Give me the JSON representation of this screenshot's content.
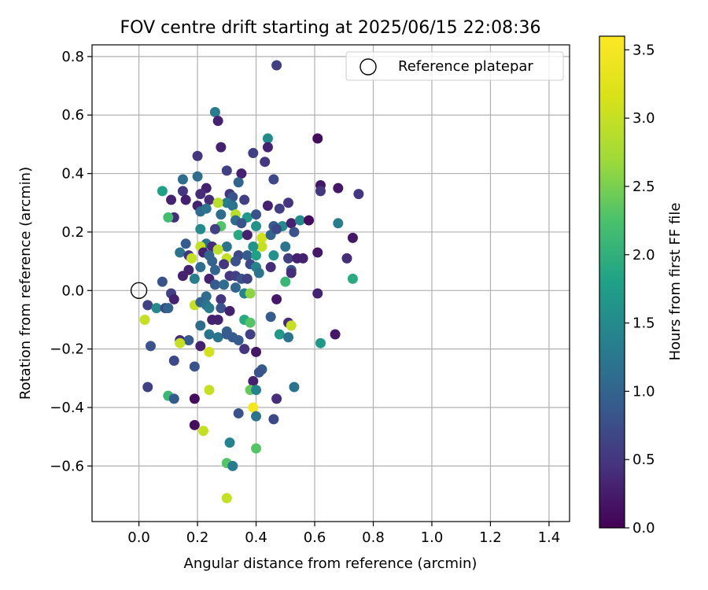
{
  "chart_data": {
    "type": "scatter",
    "title": "FOV centre drift starting at 2025/06/15 22:08:36",
    "xlabel": "Angular distance from reference (arcmin)",
    "ylabel": "Rotation from reference (arcmin)",
    "xlim": [
      -0.16,
      1.47
    ],
    "ylim": [
      -0.79,
      0.84
    ],
    "xticks": [
      0.0,
      0.2,
      0.4,
      0.6,
      0.8,
      1.0,
      1.2,
      1.4
    ],
    "xtick_labels": [
      "0.0",
      "0.2",
      "0.4",
      "0.6",
      "0.8",
      "1.0",
      "1.2",
      "1.4"
    ],
    "yticks": [
      -0.6,
      -0.4,
      -0.2,
      0.0,
      0.2,
      0.4,
      0.6,
      0.8
    ],
    "ytick_labels": [
      "−0.6",
      "−0.4",
      "−0.2",
      "0.0",
      "0.2",
      "0.4",
      "0.6",
      "0.8"
    ],
    "grid": true,
    "legend": {
      "position": "top-right",
      "entries": [
        "Reference platepar"
      ]
    },
    "reference_point": {
      "name": "Reference platepar",
      "x": 0.0,
      "y": 0.0
    },
    "colorbar": {
      "label": "Hours from first FF file",
      "range": [
        0.0,
        3.6
      ],
      "colormap": "viridis",
      "ticks": [
        0.0,
        0.5,
        1.0,
        1.5,
        2.0,
        2.5,
        3.0,
        3.5
      ],
      "tick_labels": [
        "0.0",
        "0.5",
        "1.0",
        "1.5",
        "2.0",
        "2.5",
        "3.0",
        "3.5"
      ]
    },
    "points": [
      {
        "x": 0.47,
        "y": 0.77,
        "h": 0.6
      },
      {
        "x": 0.26,
        "y": 0.61,
        "h": 1.3
      },
      {
        "x": 0.27,
        "y": 0.58,
        "h": 0.3
      },
      {
        "x": 0.44,
        "y": 0.52,
        "h": 1.5
      },
      {
        "x": 0.61,
        "y": 0.52,
        "h": 0.1
      },
      {
        "x": 0.44,
        "y": 0.49,
        "h": 0.3
      },
      {
        "x": 0.28,
        "y": 0.49,
        "h": 0.3
      },
      {
        "x": 0.39,
        "y": 0.47,
        "h": 0.6
      },
      {
        "x": 0.2,
        "y": 0.46,
        "h": 0.5
      },
      {
        "x": 0.43,
        "y": 0.44,
        "h": 0.5
      },
      {
        "x": 0.3,
        "y": 0.41,
        "h": 0.6
      },
      {
        "x": 0.35,
        "y": 0.4,
        "h": 0.3
      },
      {
        "x": 0.2,
        "y": 0.39,
        "h": 1.1
      },
      {
        "x": 0.46,
        "y": 0.38,
        "h": 0.7
      },
      {
        "x": 0.15,
        "y": 0.38,
        "h": 1.1
      },
      {
        "x": 0.34,
        "y": 0.37,
        "h": 1.0
      },
      {
        "x": 0.62,
        "y": 0.36,
        "h": 0.2
      },
      {
        "x": 0.62,
        "y": 0.34,
        "h": 0.5
      },
      {
        "x": 0.68,
        "y": 0.35,
        "h": 0.2
      },
      {
        "x": 0.75,
        "y": 0.33,
        "h": 0.5
      },
      {
        "x": 0.15,
        "y": 0.34,
        "h": 0.5
      },
      {
        "x": 0.08,
        "y": 0.34,
        "h": 1.8
      },
      {
        "x": 0.23,
        "y": 0.35,
        "h": 0.3
      },
      {
        "x": 0.21,
        "y": 0.33,
        "h": 0.4
      },
      {
        "x": 0.31,
        "y": 0.33,
        "h": 0.5
      },
      {
        "x": 0.32,
        "y": 0.32,
        "h": 0.8
      },
      {
        "x": 0.11,
        "y": 0.31,
        "h": 0.3
      },
      {
        "x": 0.16,
        "y": 0.31,
        "h": 0.3
      },
      {
        "x": 0.24,
        "y": 0.31,
        "h": 0.4
      },
      {
        "x": 0.36,
        "y": 0.31,
        "h": 0.6
      },
      {
        "x": 0.3,
        "y": 0.3,
        "h": 1.3
      },
      {
        "x": 0.27,
        "y": 0.3,
        "h": 2.9
      },
      {
        "x": 0.32,
        "y": 0.29,
        "h": 1.2
      },
      {
        "x": 0.2,
        "y": 0.29,
        "h": 0.3
      },
      {
        "x": 0.44,
        "y": 0.29,
        "h": 0.3
      },
      {
        "x": 0.51,
        "y": 0.3,
        "h": 0.5
      },
      {
        "x": 0.48,
        "y": 0.28,
        "h": 0.6
      },
      {
        "x": 0.21,
        "y": 0.27,
        "h": 1.1
      },
      {
        "x": 0.23,
        "y": 0.28,
        "h": 1.2
      },
      {
        "x": 0.28,
        "y": 0.26,
        "h": 1.1
      },
      {
        "x": 0.33,
        "y": 0.26,
        "h": 2.9
      },
      {
        "x": 0.37,
        "y": 0.25,
        "h": 1.7
      },
      {
        "x": 0.4,
        "y": 0.26,
        "h": 0.8
      },
      {
        "x": 0.12,
        "y": 0.25,
        "h": 0.4
      },
      {
        "x": 0.1,
        "y": 0.25,
        "h": 2.2
      },
      {
        "x": 0.33,
        "y": 0.24,
        "h": 1.1
      },
      {
        "x": 0.35,
        "y": 0.23,
        "h": 0.8
      },
      {
        "x": 0.4,
        "y": 0.22,
        "h": 1.6
      },
      {
        "x": 0.46,
        "y": 0.22,
        "h": 0.9
      },
      {
        "x": 0.49,
        "y": 0.22,
        "h": 1.5
      },
      {
        "x": 0.52,
        "y": 0.23,
        "h": 0.3
      },
      {
        "x": 0.55,
        "y": 0.24,
        "h": 1.5
      },
      {
        "x": 0.58,
        "y": 0.24,
        "h": 0.1
      },
      {
        "x": 0.68,
        "y": 0.23,
        "h": 1.3
      },
      {
        "x": 0.28,
        "y": 0.22,
        "h": 2.3
      },
      {
        "x": 0.21,
        "y": 0.21,
        "h": 1.5
      },
      {
        "x": 0.26,
        "y": 0.21,
        "h": 0.6
      },
      {
        "x": 0.34,
        "y": 0.19,
        "h": 1.9
      },
      {
        "x": 0.37,
        "y": 0.19,
        "h": 0.3
      },
      {
        "x": 0.42,
        "y": 0.18,
        "h": 3.1
      },
      {
        "x": 0.45,
        "y": 0.19,
        "h": 1.0
      },
      {
        "x": 0.47,
        "y": 0.21,
        "h": 0.7
      },
      {
        "x": 0.53,
        "y": 0.2,
        "h": 0.8
      },
      {
        "x": 0.73,
        "y": 0.18,
        "h": 0.2
      },
      {
        "x": 0.16,
        "y": 0.16,
        "h": 0.9
      },
      {
        "x": 0.23,
        "y": 0.16,
        "h": 1.2
      },
      {
        "x": 0.21,
        "y": 0.15,
        "h": 3.0
      },
      {
        "x": 0.25,
        "y": 0.15,
        "h": 0.4
      },
      {
        "x": 0.3,
        "y": 0.15,
        "h": 1.2
      },
      {
        "x": 0.42,
        "y": 0.15,
        "h": 3.0
      },
      {
        "x": 0.39,
        "y": 0.15,
        "h": 1.6
      },
      {
        "x": 0.5,
        "y": 0.15,
        "h": 1.2
      },
      {
        "x": 0.27,
        "y": 0.14,
        "h": 2.9
      },
      {
        "x": 0.14,
        "y": 0.13,
        "h": 1.2
      },
      {
        "x": 0.17,
        "y": 0.12,
        "h": 0.5
      },
      {
        "x": 0.22,
        "y": 0.13,
        "h": 0.3
      },
      {
        "x": 0.24,
        "y": 0.12,
        "h": 1.0
      },
      {
        "x": 0.34,
        "y": 0.12,
        "h": 0.7
      },
      {
        "x": 0.37,
        "y": 0.12,
        "h": 0.9
      },
      {
        "x": 0.4,
        "y": 0.12,
        "h": 1.8
      },
      {
        "x": 0.46,
        "y": 0.12,
        "h": 1.6
      },
      {
        "x": 0.51,
        "y": 0.11,
        "h": 0.6
      },
      {
        "x": 0.54,
        "y": 0.11,
        "h": 0.3
      },
      {
        "x": 0.56,
        "y": 0.11,
        "h": 0.3
      },
      {
        "x": 0.71,
        "y": 0.11,
        "h": 0.4
      },
      {
        "x": 0.18,
        "y": 0.11,
        "h": 3.0
      },
      {
        "x": 0.25,
        "y": 0.1,
        "h": 1.0
      },
      {
        "x": 0.3,
        "y": 0.11,
        "h": 3.0
      },
      {
        "x": 0.29,
        "y": 0.09,
        "h": 0.5
      },
      {
        "x": 0.33,
        "y": 0.1,
        "h": 0.8
      },
      {
        "x": 0.38,
        "y": 0.09,
        "h": 0.7
      },
      {
        "x": 0.4,
        "y": 0.08,
        "h": 1.4
      },
      {
        "x": 0.45,
        "y": 0.08,
        "h": 0.4
      },
      {
        "x": 0.52,
        "y": 0.07,
        "h": 0.8
      },
      {
        "x": 0.61,
        "y": 0.13,
        "h": 0.2
      },
      {
        "x": 0.17,
        "y": 0.07,
        "h": 0.3
      },
      {
        "x": 0.21,
        "y": 0.08,
        "h": 1.1
      },
      {
        "x": 0.26,
        "y": 0.07,
        "h": 1.0
      },
      {
        "x": 0.31,
        "y": 0.05,
        "h": 0.5
      },
      {
        "x": 0.33,
        "y": 0.05,
        "h": 0.6
      },
      {
        "x": 0.35,
        "y": 0.04,
        "h": 0.8
      },
      {
        "x": 0.37,
        "y": 0.04,
        "h": 0.6
      },
      {
        "x": 0.41,
        "y": 0.06,
        "h": 1.2
      },
      {
        "x": 0.52,
        "y": 0.06,
        "h": 0.4
      },
      {
        "x": 0.5,
        "y": 0.03,
        "h": 2.1
      },
      {
        "x": 0.73,
        "y": 0.04,
        "h": 1.9
      },
      {
        "x": 0.08,
        "y": 0.03,
        "h": 0.8
      },
      {
        "x": 0.15,
        "y": 0.05,
        "h": 0.3
      },
      {
        "x": 0.19,
        "y": 0.04,
        "h": 1.3
      },
      {
        "x": 0.24,
        "y": 0.04,
        "h": 0.3
      },
      {
        "x": 0.26,
        "y": 0.02,
        "h": 0.9
      },
      {
        "x": 0.29,
        "y": 0.02,
        "h": 1.1
      },
      {
        "x": 0.33,
        "y": 0.01,
        "h": 1.0
      },
      {
        "x": 0.36,
        "y": -0.01,
        "h": 1.4
      },
      {
        "x": 0.38,
        "y": -0.01,
        "h": 2.6
      },
      {
        "x": 0.11,
        "y": -0.01,
        "h": 0.6
      },
      {
        "x": 0.12,
        "y": -0.03,
        "h": 0.3
      },
      {
        "x": 0.23,
        "y": -0.02,
        "h": 1.1
      },
      {
        "x": 0.28,
        "y": -0.03,
        "h": 0.5
      },
      {
        "x": 0.47,
        "y": -0.03,
        "h": 0.2
      },
      {
        "x": 0.61,
        "y": -0.01,
        "h": 0.3
      },
      {
        "x": 0.03,
        "y": -0.05,
        "h": 0.6
      },
      {
        "x": 0.06,
        "y": -0.06,
        "h": 1.5
      },
      {
        "x": 0.09,
        "y": -0.06,
        "h": 0.7
      },
      {
        "x": 0.1,
        "y": -0.06,
        "h": 1.0
      },
      {
        "x": 0.19,
        "y": -0.05,
        "h": 3.0
      },
      {
        "x": 0.21,
        "y": -0.04,
        "h": 1.0
      },
      {
        "x": 0.23,
        "y": -0.05,
        "h": 1.2
      },
      {
        "x": 0.24,
        "y": -0.06,
        "h": 1.3
      },
      {
        "x": 0.28,
        "y": -0.06,
        "h": 0.8
      },
      {
        "x": 0.31,
        "y": -0.07,
        "h": 0.3
      },
      {
        "x": 0.02,
        "y": -0.1,
        "h": 3.0
      },
      {
        "x": 0.25,
        "y": -0.1,
        "h": 0.3
      },
      {
        "x": 0.27,
        "y": -0.1,
        "h": 0.3
      },
      {
        "x": 0.36,
        "y": -0.1,
        "h": 1.9
      },
      {
        "x": 0.38,
        "y": -0.11,
        "h": 2.3
      },
      {
        "x": 0.45,
        "y": -0.09,
        "h": 0.9
      },
      {
        "x": 0.51,
        "y": -0.11,
        "h": 0.4
      },
      {
        "x": 0.21,
        "y": -0.12,
        "h": 1.1
      },
      {
        "x": 0.3,
        "y": -0.14,
        "h": 1.0
      },
      {
        "x": 0.38,
        "y": -0.15,
        "h": 0.6
      },
      {
        "x": 0.52,
        "y": -0.12,
        "h": 3.0
      },
      {
        "x": 0.14,
        "y": -0.17,
        "h": 0.4
      },
      {
        "x": 0.17,
        "y": -0.17,
        "h": 0.9
      },
      {
        "x": 0.24,
        "y": -0.15,
        "h": 1.2
      },
      {
        "x": 0.27,
        "y": -0.16,
        "h": 1.2
      },
      {
        "x": 0.3,
        "y": -0.15,
        "h": 0.9
      },
      {
        "x": 0.32,
        "y": -0.16,
        "h": 0.9
      },
      {
        "x": 0.34,
        "y": -0.17,
        "h": 0.9
      },
      {
        "x": 0.48,
        "y": -0.15,
        "h": 1.7
      },
      {
        "x": 0.51,
        "y": -0.16,
        "h": 1.2
      },
      {
        "x": 0.14,
        "y": -0.18,
        "h": 3.0
      },
      {
        "x": 0.21,
        "y": -0.19,
        "h": 0.3
      },
      {
        "x": 0.36,
        "y": -0.2,
        "h": 0.5
      },
      {
        "x": 0.4,
        "y": -0.21,
        "h": 0.2
      },
      {
        "x": 0.62,
        "y": -0.18,
        "h": 1.7
      },
      {
        "x": 0.67,
        "y": -0.15,
        "h": 0.2
      },
      {
        "x": 0.04,
        "y": -0.19,
        "h": 0.8
      },
      {
        "x": 0.24,
        "y": -0.21,
        "h": 3.1
      },
      {
        "x": 0.12,
        "y": -0.24,
        "h": 0.7
      },
      {
        "x": 0.19,
        "y": -0.26,
        "h": 0.8
      },
      {
        "x": 0.42,
        "y": -0.27,
        "h": 0.9
      },
      {
        "x": 0.41,
        "y": -0.28,
        "h": 0.8
      },
      {
        "x": 0.39,
        "y": -0.31,
        "h": 0.3
      },
      {
        "x": 0.03,
        "y": -0.33,
        "h": 0.6
      },
      {
        "x": 0.24,
        "y": -0.34,
        "h": 3.0
      },
      {
        "x": 0.38,
        "y": -0.34,
        "h": 2.4
      },
      {
        "x": 0.4,
        "y": -0.34,
        "h": 1.4
      },
      {
        "x": 0.53,
        "y": -0.33,
        "h": 1.2
      },
      {
        "x": 0.1,
        "y": -0.36,
        "h": 2.1
      },
      {
        "x": 0.12,
        "y": -0.37,
        "h": 0.9
      },
      {
        "x": 0.19,
        "y": -0.37,
        "h": 0.1
      },
      {
        "x": 0.47,
        "y": -0.37,
        "h": 0.4
      },
      {
        "x": 0.39,
        "y": -0.4,
        "h": 3.5
      },
      {
        "x": 0.34,
        "y": -0.42,
        "h": 0.8
      },
      {
        "x": 0.4,
        "y": -0.43,
        "h": 1.2
      },
      {
        "x": 0.46,
        "y": -0.44,
        "h": 0.7
      },
      {
        "x": 0.19,
        "y": -0.46,
        "h": 0.1
      },
      {
        "x": 0.22,
        "y": -0.48,
        "h": 3.0
      },
      {
        "x": 0.31,
        "y": -0.52,
        "h": 1.4
      },
      {
        "x": 0.4,
        "y": -0.54,
        "h": 2.3
      },
      {
        "x": 0.3,
        "y": -0.59,
        "h": 2.3
      },
      {
        "x": 0.32,
        "y": -0.6,
        "h": 1.3
      },
      {
        "x": 0.3,
        "y": -0.71,
        "h": 3.0
      }
    ]
  }
}
